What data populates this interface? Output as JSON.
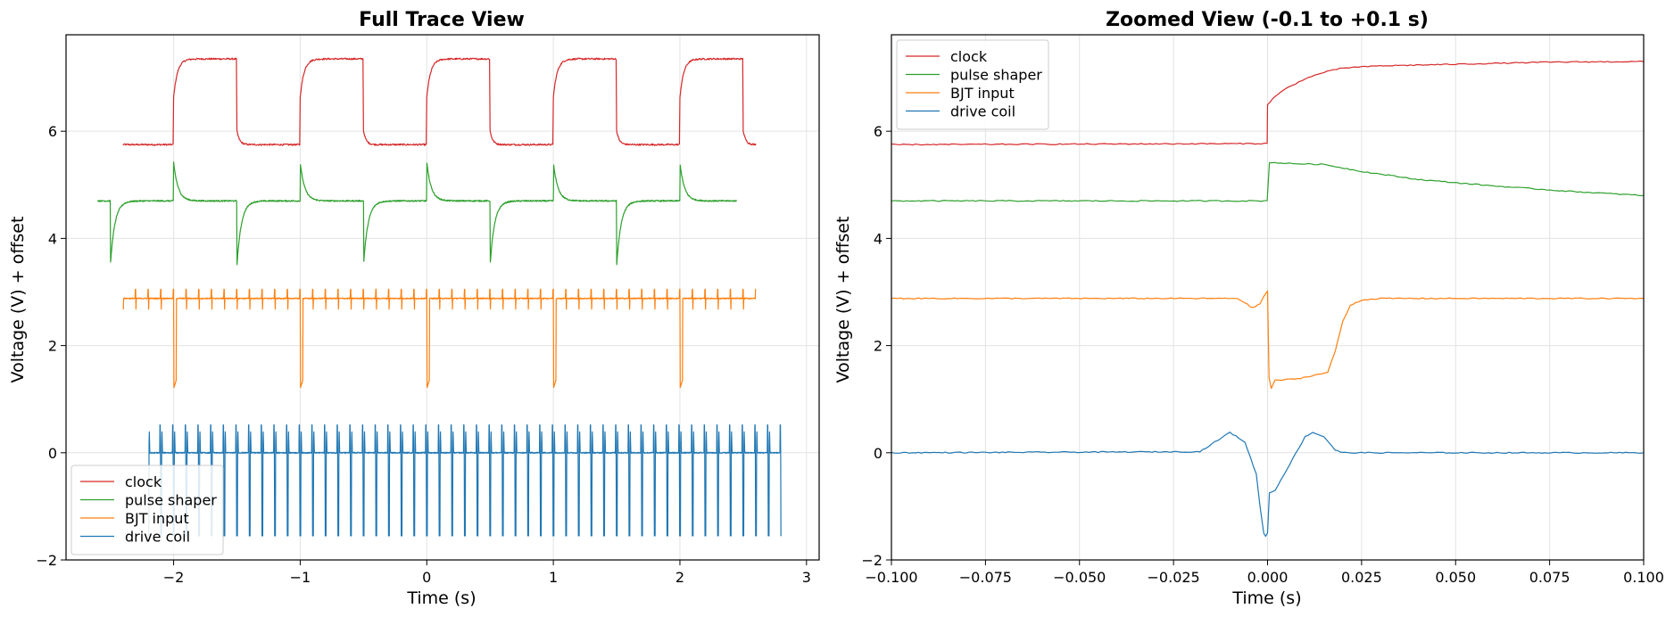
{
  "figure": {
    "series_styles": [
      {
        "name": "clock",
        "color": "#d62728"
      },
      {
        "name": "pulse shaper",
        "color": "#2ca02c"
      },
      {
        "name": "BJT input",
        "color": "#ff7f0e"
      },
      {
        "name": "drive coil",
        "color": "#1f77b4"
      }
    ]
  },
  "chart_data": [
    {
      "type": "line",
      "title": "Full Trace View",
      "xlabel": "Time (s)",
      "ylabel": "Voltage (V) + offset",
      "xlim": [
        -2.85,
        3.1
      ],
      "ylim": [
        -2.0,
        7.8
      ],
      "xticks": [
        -2,
        -1,
        0,
        1,
        2,
        3
      ],
      "xtick_labels": [
        "−2",
        "−1",
        "0",
        "1",
        "2",
        "3"
      ],
      "yticks": [
        -2,
        0,
        2,
        4,
        6
      ],
      "ytick_labels": [
        "−2",
        "0",
        "2",
        "4",
        "6"
      ],
      "grid": true,
      "legend_position": "lower-left",
      "legend": [
        "clock",
        "pulse shaper",
        "BJT input",
        "drive coil"
      ],
      "series": [
        {
          "name": "clock",
          "description": "square wave, period 1 s, rising edges at integer seconds",
          "x_range": [
            -2.4,
            2.6
          ],
          "low": 5.75,
          "high": 7.35,
          "rise_times": [
            -2,
            -1,
            0,
            1,
            2
          ],
          "fall_times": [
            -1.5,
            -0.5,
            0.5,
            1.5,
            2.5
          ]
        },
        {
          "name": "pulse shaper",
          "description": "baseline with exponential spikes at clock edges",
          "x_range": [
            -2.6,
            2.45
          ],
          "baseline": 4.7,
          "peak_high": 5.42,
          "peak_low": 3.48
        },
        {
          "name": "BJT input",
          "description": "baseline with small spikes and deep dips at rising edges",
          "x_range": [
            -2.4,
            2.6
          ],
          "baseline": 2.88,
          "small_spike_high": 3.05,
          "small_spike_low": 2.68,
          "dip_low": 1.2,
          "small_spike_period": 0.1
        },
        {
          "name": "drive coil",
          "description": "bipolar pulse train around 0 V",
          "x_range": [
            -2.2,
            2.8
          ],
          "baseline": 0.0,
          "pulse_high": 0.78,
          "pulse_low": -1.55,
          "pulse_period": 0.1
        }
      ]
    },
    {
      "type": "line",
      "title": "Zoomed View (-0.1 to +0.1 s)",
      "xlabel": "Time (s)",
      "ylabel": "Voltage (V) + offset",
      "xlim": [
        -0.1,
        0.1
      ],
      "ylim": [
        -2.0,
        7.8
      ],
      "xticks": [
        -0.1,
        -0.075,
        -0.05,
        -0.025,
        0.0,
        0.025,
        0.05,
        0.075,
        0.1
      ],
      "xtick_labels": [
        "−0.100",
        "−0.075",
        "−0.050",
        "−0.025",
        "0.000",
        "0.025",
        "0.050",
        "0.075",
        "0.100"
      ],
      "yticks": [
        -2,
        0,
        2,
        4,
        6
      ],
      "ytick_labels": [
        "−2",
        "0",
        "2",
        "4",
        "6"
      ],
      "grid": true,
      "legend_position": "upper-left",
      "legend": [
        "clock",
        "pulse shaper",
        "BJT input",
        "drive coil"
      ],
      "series": [
        {
          "name": "clock",
          "x": [
            -0.1,
            -0.0001,
            0.0,
            0.002,
            0.005,
            0.01,
            0.015,
            0.02,
            0.03,
            0.05,
            0.075,
            0.1
          ],
          "y": [
            5.75,
            5.77,
            6.5,
            6.65,
            6.8,
            6.98,
            7.1,
            7.18,
            7.22,
            7.25,
            7.29,
            7.3
          ]
        },
        {
          "name": "pulse shaper",
          "x": [
            -0.1,
            -0.0001,
            0.0005,
            0.005,
            0.015,
            0.025,
            0.04,
            0.06,
            0.08,
            0.1
          ],
          "y": [
            4.7,
            4.7,
            5.42,
            5.4,
            5.38,
            5.25,
            5.1,
            4.98,
            4.88,
            4.8
          ]
        },
        {
          "name": "BJT input",
          "x": [
            -0.1,
            -0.008,
            -0.006,
            -0.004,
            -0.002,
            -0.001,
            0.0,
            0.0004,
            0.001,
            0.002,
            0.008,
            0.016,
            0.018,
            0.02,
            0.022,
            0.025,
            0.03,
            0.05,
            0.1
          ],
          "y": [
            2.88,
            2.88,
            2.8,
            2.7,
            2.78,
            2.92,
            3.02,
            1.4,
            1.2,
            1.35,
            1.38,
            1.5,
            1.9,
            2.45,
            2.75,
            2.85,
            2.88,
            2.88,
            2.88
          ],
          "_note": "values estimated from gridlines"
        },
        {
          "name": "drive coil",
          "x": [
            -0.1,
            -0.018,
            -0.014,
            -0.01,
            -0.006,
            -0.003,
            -0.002,
            -0.001,
            -0.0005,
            0.0,
            0.0005,
            0.002,
            0.006,
            0.01,
            0.012,
            0.015,
            0.018,
            0.02,
            0.03,
            0.1
          ],
          "y": [
            0.0,
            0.02,
            0.2,
            0.38,
            0.2,
            -0.4,
            -1.0,
            -1.5,
            -1.55,
            -1.5,
            -0.75,
            -0.7,
            -0.2,
            0.3,
            0.38,
            0.3,
            0.05,
            0.0,
            0.0,
            0.0
          ],
          "_note": "values estimated from gridlines"
        }
      ]
    }
  ]
}
